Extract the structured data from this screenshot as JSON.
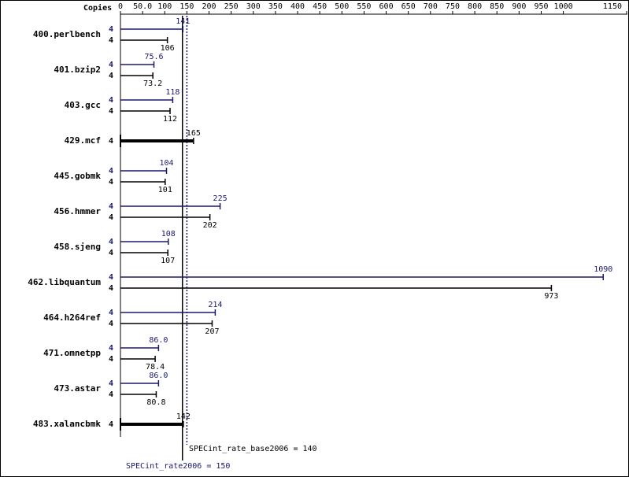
{
  "chart_data": {
    "type": "spec-bar",
    "copies_label": "Copies",
    "categories": [
      "400.perlbench",
      "401.bzip2",
      "403.gcc",
      "429.mcf",
      "445.gobmk",
      "456.hmmer",
      "458.sjeng",
      "462.libquantum",
      "464.h264ref",
      "471.omnetpp",
      "473.astar",
      "483.xalancbmk"
    ],
    "series": [
      {
        "color": "#191970",
        "copies": [
          4,
          4,
          4,
          null,
          4,
          4,
          4,
          4,
          4,
          4,
          4,
          null
        ],
        "values": [
          141,
          75.6,
          118,
          null,
          104,
          225,
          108,
          1090,
          214,
          86.0,
          86.0,
          null
        ],
        "value_labels": [
          "141",
          "75.6",
          "118",
          null,
          "104",
          "225",
          "108",
          "1090",
          "214",
          "86.0",
          "86.0",
          null
        ]
      },
      {
        "color": "#000000",
        "copies": [
          4,
          4,
          4,
          4,
          4,
          4,
          4,
          4,
          4,
          4,
          4,
          4
        ],
        "values": [
          106,
          73.2,
          112,
          165,
          101,
          202,
          107,
          973,
          207,
          78.4,
          80.8,
          142
        ]
      }
    ],
    "xlim": [
      0,
      1150
    ],
    "xticks": [
      0,
      {
        "value": 50,
        "label": "50.0"
      },
      100,
      150,
      200,
      250,
      300,
      350,
      400,
      450,
      500,
      550,
      600,
      650,
      700,
      750,
      800,
      850,
      900,
      950,
      1000,
      1150
    ],
    "reference_lines": [
      {
        "value": 140,
        "label": "SPECint_rate_base2006 = 140",
        "color": "#000000",
        "dotted": false
      },
      {
        "value": 150,
        "label": "SPECint_rate2006 = 150",
        "color": "#191970",
        "dotted": true
      }
    ]
  }
}
